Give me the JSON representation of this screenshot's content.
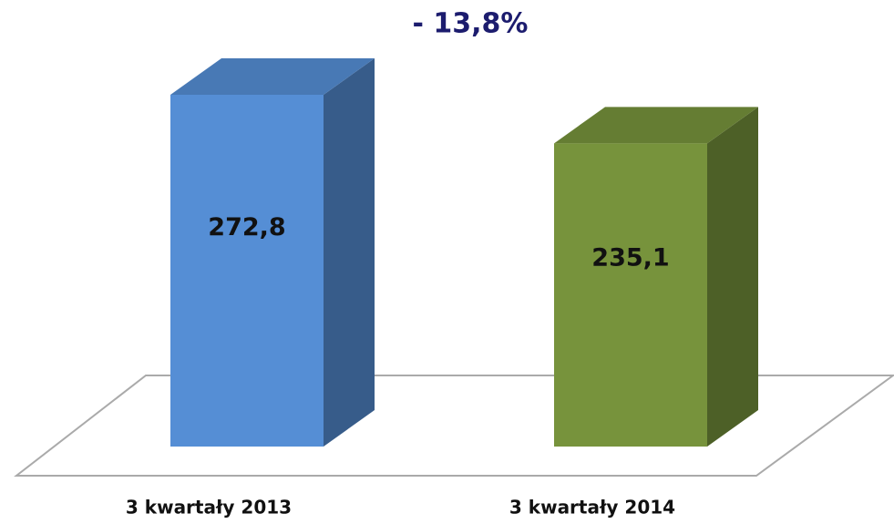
{
  "chart_data": {
    "type": "bar3d",
    "title": "- 13,8%",
    "categories": [
      "3 kwartały 2013",
      "3 kwartały 2014"
    ],
    "values": [
      272.8,
      235.1
    ],
    "value_labels": [
      "272,8",
      "235,1"
    ],
    "colors": [
      "#558ed5",
      "#77933c"
    ]
  }
}
